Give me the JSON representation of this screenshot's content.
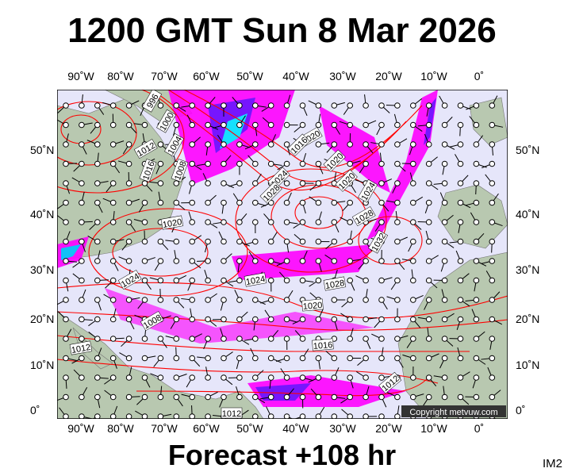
{
  "title": "1200 GMT Sun 8 Mar 2026",
  "footer": "Forecast +108 hr",
  "image_code": "IM2",
  "copyright": "Copyright metvuw.com",
  "longitude_labels": [
    "90˚W",
    "80˚W",
    "70˚W",
    "60˚W",
    "50˚W",
    "40˚W",
    "30˚W",
    "20˚W",
    "10˚W",
    "0˚"
  ],
  "latitude_labels": [
    "50˚N",
    "40˚N",
    "30˚N",
    "20˚N",
    "10˚N",
    "0˚"
  ],
  "isobar_labels": [
    "996",
    "1000",
    "1004",
    "1008",
    "1012",
    "1016",
    "1020",
    "1020",
    "1016",
    "1024",
    "1028",
    "1020",
    "1024",
    "1028",
    "1032",
    "1028",
    "1024",
    "1024",
    "1020",
    "1016",
    "1008",
    "1012",
    "1012",
    "1012",
    "1020"
  ],
  "colors": {
    "ocean": "#e6e6fa",
    "land": "#b8c8b0",
    "isobar": "#ff0000",
    "precip_light": "#ff00ff",
    "precip_mid": "#6a00ff",
    "precip_heavy": "#00ffff",
    "barbs": "#000000"
  }
}
